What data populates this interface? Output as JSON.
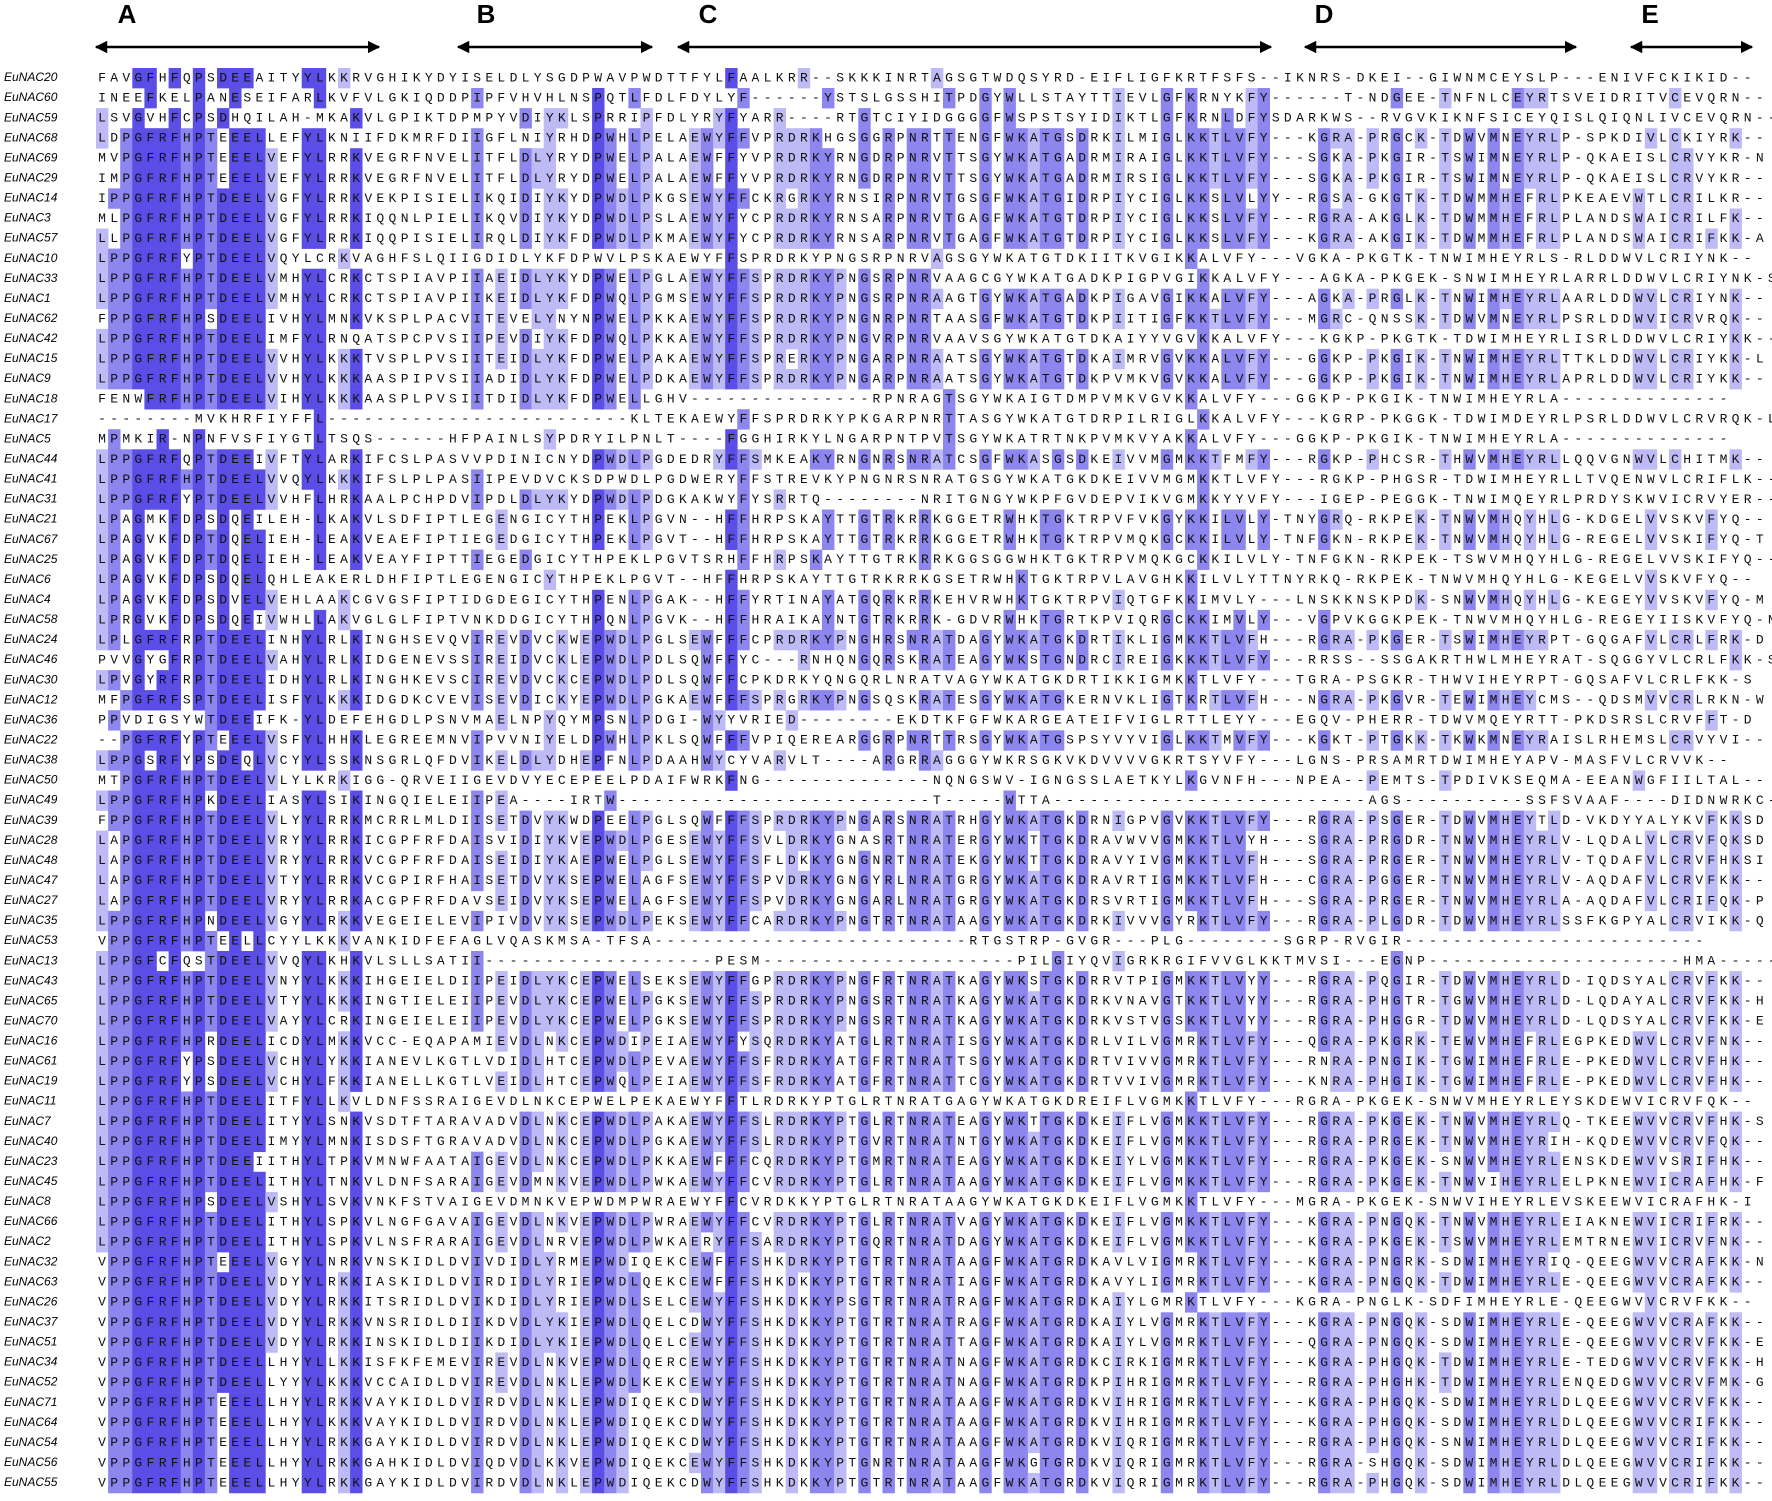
{
  "alignment": {
    "domains": [
      "A",
      "B",
      "C",
      "D",
      "E"
    ],
    "sequences": [
      {
        "name": "EuNAC20",
        "sequence": "FAVGFHFQPSDEEAITYYLKKRVGHIKYDYISELDLYSGDPWAVPWDTTFYLFAALKRR--SKKKINRTAGSGTWDQSYRD-EIFLIGFKRTFSFS--IKNRS-DKEI--GIWNMCEYSLP---ENIVFCKIKID--"
      },
      {
        "name": "EuNAC60",
        "sequence": "INEEFKELPANESEIFARLKVFVLGKIQDDPIPFVHVHLNSPQTLFDLFDYLYF------YSTSLGSSHITPDGYWLLSTAYTTIEVLGFKRNYKFY------T-NDGEE-TNFNLCEYRTSVEIDRITVCEVQRN--"
      },
      {
        "name": "EuNAC59",
        "sequence": "LSVGVHFCPSDHQILAH-MKAKVLGPIKTDPMPYVDIYKLSPRRIPFDLYRYFYARR----RTGTCIYIDGGGGFWSPSTSYIDIKTLGFKRNLDFYSDARKWS--RVGVKIKNFSICEYQISLQIQNLIVCEVQRN--"
      },
      {
        "name": "EuNAC68",
        "sequence": "LDPGFRFHPTEEELLEFYLKNIIFDKMRFDIIGFLNIYRHDPWHLPELAEWYFFVPRDRKHGSGGRPNRTTENGFWKATGSDRKILMIGLKKTLVFY---KGRA-PRGCK-TDWVMNEYRLP-SPKDIVLCKIYRK--"
      },
      {
        "name": "EuNAC69",
        "sequence": "MVPGFRFHPTEEELVEFYLRRKVEGRFNVELITFLDLYRYDPWELPALAEWFFYVPRDRKYRNGDRPNRVTTSGYWKATGADRMIRAIGLKKTLVFY---SGKA-PKGIR-TSWIMNEYRLP-QKAEISLCRVYKR-N"
      },
      {
        "name": "EuNAC29",
        "sequence": "IMPGFRFHPTEEELVEFYLRRKVEGRFNVELITFLDLYRYDPWELPALAEWFFYVPRDRKYRNGDRPNRVTTSGYWKATGADRMIRSIGLKKTLVFY---SGKA-PKGIR-TSWIMNEYRLP-QKAEISLCRVYKR--"
      },
      {
        "name": "EuNAC14",
        "sequence": "IPPGFRFHPTDEELVGFYLRRKVEKPISIELIKQIDIYKYDPWDLPKGSEWYFFCKRGRKYRNSIRPNRVTGSGFWKATGIDRPIYCIGLKKSLVLYY--RGSA-GKGTK-TDWMMHEFRLPKEAEVWTLCRILKR--"
      },
      {
        "name": "EuNAC3",
        "sequence": "MLPGFRFHPTDEELVGFYLRRKIQQNLPIELIKQVDIYKYDPWDLPSLAEWYFYCPRDRKYRNSARPNRVTGAGFWKATGTDRPIYCIGLKKSLVFY---RGRA-AKGLK-TDWMMHEFRLPLANDSWAICRILFK--"
      },
      {
        "name": "EuNAC57",
        "sequence": "LLPGFRFHPTDEELVGFYLRRKIQQPISIELIRQLDIYKFDPWDLPKMAEWYFYCPRDRKYRNSARPNRVTGAGFWKATGTDRPIYCIGLKKSLVFY---KGRA-AKGIK-TDWMMHEFRLPLANDSWAICRIFKK-A"
      },
      {
        "name": "EuNAC10",
        "sequence": "LPPGFRFYPTDEELVQYLCRKVAGHFSLQIIGDIDLYKFDPWVLPSKAEWYFFSPRDRKYPNGSRPNRVAGSGYWKATGTDKIITKVGIKKALVFY---VGKA-PKGTK-TNWIMHEYRLS-RLDDWVLCRIYNK--"
      },
      {
        "name": "EuNAC33",
        "sequence": "LPPGFRFHPTDEELVMHYLCRKCTSPIAVPIIAEIDLYKYDPWELPGLAEWYFFSPRDRKYPNGSRPNRVAAGCGYWKATGADKPIGPVGIKKALVFY---AGKA-PKGEK-SNWIMHEYRLARRLDDWVLCRIYNK-S"
      },
      {
        "name": "EuNAC1",
        "sequence": "LPPGFRFHPTDEELVMHYLCRKCTSPIAVPIIKEIDLYKFDPWQLPGMSEWYFFSPRDRKYPNGSRPNRAAGTGYWKATGADKPIGAVGIKKALVFY---AGKA-PRGLK-TNWIMHEYRLAARLDDWVLCRIYNK--"
      },
      {
        "name": "EuNAC62",
        "sequence": "FPPGFRFHPSDEELIVHYLMNKVKSPLPACVITEVELYNYNPWELPKKAEWYFFSPRDRKYPNGNRPNRTAASGFWKATGTDKPIITIGFKKTLVFY---MGRC-QNSSK-TDWVMNEYRLPSRLDDWVICRVRQK--"
      },
      {
        "name": "EuNAC42",
        "sequence": "LPPGFRFHPTDEELIMFYLRNQATSPCPVSIIPEVDIYKFDPWQLPKKAEWYFFSPRDRKYPNGVRPNRVAAVSGYWKATGTDKAIYYVGVKKALVFY---KGKP-PKGTK-TDWIMHEYRLISRLDDWVLCRIYKK--"
      },
      {
        "name": "EuNAC15",
        "sequence": "LPPGFRFHPTDEELVVHYLKKKTVSPLPVSIITEIDLYKFDPWELPAKAEWYFFSPRERKYPNGARPNRAATSGYWKATGTDKAIMRVGVKKALVFY---GGKP-PKGIK-TNWIMHEYRLTTKLDDWVLCRIYKK-L"
      },
      {
        "name": "EuNAC9",
        "sequence": "LPPGFRFHPTDEELVVHYLKKKAASPIPVSIIADIDLYKFDPWELPDKAEWYFFSPRDRKYPNGARPNRAATSGYWKATGTDKPVMKVGVKKALVFY---GGKP-PKGIK-TNWIMHEYRLAPRLDDWVLCRIYKK--"
      },
      {
        "name": "EuNAC18",
        "sequence": "FENWFRFHPTDEELVIHYLKKKAASPLPVSIITDIDLYKFDPWELLGHV---------------RPNRAGTSGYWKAIGTDMPVMKVGVKKALVFY---GGKP-PKGIK-TNWIMHEYRLA--------------"
      },
      {
        "name": "EuNAC17",
        "sequence": "--------MVKHRFIYFFL-------------------------KLTEKAEWYFFSPRDRKYPKGARPNRTTASGYWKATGTDRPILRIGLKKALVFY---KGRP-PKGGK-TDWIMDEYRLPSRLDDWVLCRVRQK-L"
      },
      {
        "name": "EuNAC5",
        "sequence": "MPMKIR-NPNFVSFIYGTLTSQS------HFPAINLSYPDRYILPNLT----FGGHIRKYLNGARPNTPVTSGYWKATRTNKPVMKVYAKKALVFY---GGKP-PKGIK-TNWIMHEYRLA--------------"
      },
      {
        "name": "EuNAC44",
        "sequence": "LPPGFRFQPTDEEIVFTYLARKIFCSLPASVVPDINICNYDPWDLPGDEDRYFFSMKEAKYRNGNRSNRATCSGFWKASGSDKEIVVMGMKKTFMFY---RGKP-PHCSR-THWVMHEYRLLQQVGNWVLCHITMK--"
      },
      {
        "name": "EuNAC41",
        "sequence": "LPPGFRFHPTDEELVVQYLKKKIFSLPLPASIIPEVDVCKSDPWDLPGDWERYFFSTREVKYPNGNRSNRATGSGYWKATGKDKEIVVMGMKKTLVFY---RGKP-PHGSR-TDWIMHEYRLLTVQENWVLCRIFLK--"
      },
      {
        "name": "EuNAC31",
        "sequence": "LPPGFRFYPTDEELVVHFLHRKAALPCHPDVIPDLDLYKYDPWDLPDGKAKWYFYSRRTQ--------NRITGNGYWKPFGVDEPVIKVGMKKYYVFY---IGEP-PEGGK-TNWIMQEYRLPRDYSKWVICRVYER--"
      },
      {
        "name": "EuNAC21",
        "sequence": "LPAGMKFDPSDQEILEH-LKAKVLSDFIPTLEGENGICYTHPEKLPGVN--HFFHRPSKAYTTGTRKRRKGGETRWHKTGKTRPVFVKGYKKILVLY-TNYGRQ-RKPEK-TNWVMHQYHLG-KDGELVVSKVFYQ--"
      },
      {
        "name": "EuNAC67",
        "sequence": "LPAGVKFDPTDQELIEH-LEAKVEAEFIPTIEGEDGICYTHPEKLPGVT--HFFHRPSKAYTTGTRKRRKGGETRWHKTGKTRPVMQKGCKKILVLY-TNFGKN-RKPEK-TNWVMHQYHLG-REGELVVSKIFYQ-T"
      },
      {
        "name": "EuNAC25",
        "sequence": "LPAGVKFDPTDQELIEH-LEAKVEAYFIPTTIEGEDGICYTHPEKLPGVTSRHFFHRPSKAYTTGTRKRRKGGSGGWHKTGKTRPVMQKGCKKILVLY-TNFGKN-RKPEK-TSWVMHQYHLG-REGELVVSKIFYQ--"
      },
      {
        "name": "EuNAC6",
        "sequence": "LPAGVKFDPSDQELQHLEAKERLDHFIPTLEGENGICYTHPEKLPGVT--HFFHRPSKAYTTGTRKRRKGSETRWHKTGKTRPVLAVGHKKILVLYTTNYRKQ-RKPEK-TNWVMHQYHLG-KEGELVVSKVFYQ--"
      },
      {
        "name": "EuNAC4",
        "sequence": "LPAGVKFDPSDVELVEHLAAKCGVGSFIPTIDGDEGICYTHPENLPGAK--HFFYRTINAYATGQRKRRKEHVRWHKTGKTRPVIQTGFKKIMVLY---LNSKKNSKPDK-SNWVMHQYHLG-KEGEYVVSKVFYQ-M"
      },
      {
        "name": "EuNAC58",
        "sequence": "LPRGVKFDPSDQEIVWHLLAKVGLGLFIPTVNKDDGICYTHPQNLPGVK--HFFHRAIKAYNTGTRKRRK-GDVRWHKTGRTKPVIQRGCKKIMVLY---VGPVKGGKPEK-TNWVMHQYHLG-REGEYIISKVFYQ-N"
      },
      {
        "name": "EuNAC24",
        "sequence": "LPLGFRFRPTDEELINHYLRLKINGHSEVQVIREVDVCKWEPWDLPGLSEWFFFCPRDRKYPNGHRSNRATDAGYWKATGKDRTIKLIGMKKTLVFH---RGRA-PKGER-TSWIMHEYRPT-GQGAFVLCRLFRK-D"
      },
      {
        "name": "EuNAC46",
        "sequence": "PVVGYGFRPTDEELVAHYLRLKIDGENEVSSIREIDVCKLEPWDLPDLSQWFFYC---RNHQNGQRSKRATEAGYWKSTGNDRCIREIGKKKTLVFY---RRSS--SSGAKRTHWLMHEYRAT-SQGGYVLCRLFKK-S"
      },
      {
        "name": "EuNAC30",
        "sequence": "LPVGYRFRPTDEELIDHYLRLKINGHKEVSCIREVDVCKCEPWDLPDLSQWFFCPKDRKYQNGQRLNRATVAGYWKATGKDRTIKKIGMKKTLVFY---TGRA-PSGKR-THWVIHEYRPT-GQSAFVLCRLFKK-S"
      },
      {
        "name": "EuNAC12",
        "sequence": "MFPGFRFSPTDEELISFYLKKKIDGDKCVEVISEVDICKYEPWDLPGKAEWFFFSPRGRKYPNGSQSKRATESGYWKATGKERNVKLIGTKRTLVFH---NGRA-PKGVR-TEWIMHEYCMS--QDSMVVCRLRKN-W"
      },
      {
        "name": "EuNAC36",
        "sequence": "PPVDIGSYWTDEEIFK-YLDEFEHGDLPSNVMAELNPYQYMPSNLPDGI-WYYVRIED--------EKDTKFGFWKARGEATEIFVIGLRTTLEYY---EGQV-PHERR-TDWVMQEYRTT-PKDSRSLCRVFFT-D"
      },
      {
        "name": "EuNAC22",
        "sequence": "--PGFRFYPTEEELVSFYLHHKLEGREEMNVIPVVNIYELDPWHLPKLSQWFFFVPIQEREARGGRPNRTTRSGYWKATGSPSYVYVIGLKKTMVFY---KGKT-PTGKK-TKWKMNEYRAISLRHEMSLCRVYVI--"
      },
      {
        "name": "EuNAC38",
        "sequence": "LPPGSRFYPSDEQLVCYYLSSKNSGRLQFDVIKELDLYDHEPFNLPDAAHWYCYVARVLT----ARGRRAGGGYWKRSGKVKDVVVVGKRTSYVFY---LGNS-PRSAMRTDWIMHEYAPV-MASFVLCRVVK--"
      },
      {
        "name": "EuNAC50",
        "sequence": "MTPGFRFHPTDEELVLYLKRKIGG-QRVEIIGEVDVYECEPEELPDAIFWRKFNG--------------NQNGSWV-IGNGSSLAETKYLKGVNFH---NPEA--PEMTS-TPDIVKSEQMA-EEANWGFIILTAL--"
      },
      {
        "name": "EuNAC49",
        "sequence": "LPPGFRFHPKDEELIASYLSIKINGQIELEIIPEA----IRTW--------------------------T-----WTTA--------------------------AGS----------SSFSVAAF----DIDNWRKC-----"
      },
      {
        "name": "EuNAC39",
        "sequence": "FPPGFRFHPTDEELVLYYLRRKMCRRLMLDIISETDVYKWDPEELPGLSQWFFFSPRDRKYPNGARSNRATRHGYWKATGKDRNIGPVGVKKTLVFY---RGRA-PSGER-TDWVMHEYTLD-VKDYYALYKVFKKSD"
      },
      {
        "name": "EuNAC28",
        "sequence": "LAPGFRFHPTDEELVRYYLRRKICGPFRFDAISVIDIYKVEPWDLPGESEWYFFSVLDRKYGNASRTNRATERGYWKTTGKDRAVWVVGMKKTLVYH---SGRA-PRGDR-TNWVMHEYRLV-LQDALVLCRVFQKSD"
      },
      {
        "name": "EuNAC48",
        "sequence": "LAPGFRFHPTDEELVRYYLRRKVCGPFRFDAISEIDIYKAEPWELPGLSEWYFFSFLDKKYGNGNRTNRATEKGYWKTTGKDRAVYIVGMKKTLVFH---SGRA-PRGER-TNWVMHEYRLV-TQDAFVLCRVFHKSI"
      },
      {
        "name": "EuNAC47",
        "sequence": "LAPGFRFHPTDEELVTYYLRRKVCGPIRFHAISETDVYKSEPWELAGFSEWYFFSPVDRKYGNGYRLNRATGRGYWKATGKDRAVRTIGMKKTLVFH---CGRA-PGGER-TNWVMHEYRLV-AQDAFVLCRVFKK--"
      },
      {
        "name": "EuNAC27",
        "sequence": "LAPGFRFHPTDEELVRYYLRRKACGPFRFDAVSEIDVYKSEPWELAGFSEWYFFSPVDRKYGNGARLNRATGRGYWKATGKDRSVRTIGMKKTLVFH---SGRA-PRGER-TNWVMHEYRLA-AQDAFVLCRIFQK-P"
      },
      {
        "name": "EuNAC35",
        "sequence": "LPPGFRFHPNDEELVGYYLRKKVEGEIELEVIPIVDVYKSEPWDLPEKSEWYFFCARDRKYPNGTRTNRATAAGYWKATGKDRKIVVVGYRKTLVFY---RGRA-PLGDR-TDWVMHEYRLSSFKGPYALCRVIKK-Q"
      },
      {
        "name": "EuNAC53",
        "sequence": "VPPGFRFHPTEELLCYYLKKKVANKIDFEFAGLVQASKMSA-TFSA--------------------------RTGSTRP-GVGR---PLG--------SGRP-RVGIR-------------------------"
      },
      {
        "name": "EuNAC13",
        "sequence": "LPPGFCFQSTDEELVVQYLKHKVLSLLSATII-------------------PESM---------------------PILGIYQVIGRKRGIFVVGLKKTMVSI---EGNP---------------------HMA----------"
      },
      {
        "name": "EuNAC43",
        "sequence": "LPPGFRFHPTDEELVNYYLKKKIHGEIELDIIPEIDLYKCEPWELSEKSEWYFFGPRDRKYPNGFRTNRATKAGYWKSTGKDRRVTPIGMKKTLVYY---RGRA-PQGIR-TDWVMHEYRLD-IQDSYALCRVFKK--"
      },
      {
        "name": "EuNAC65",
        "sequence": "LPPGFRFHPTDEELVTYYLKKKINGTIELEIIPEVDLYKCEPWELPGKSEWYFFSPRDRKYPNGSRTNRATKAGYWKATGKDRKVNAVGTKKTLVYY---RGRA-PHGTR-TGWVMHEYRLD-LQDAYALCRVFKK-H"
      },
      {
        "name": "EuNAC70",
        "sequence": "LPPGFRFHPTDEELVAYYLCRKINGEIELEIIPEVDLYKCEPWELPGKSEWYFFSPRDRKYPNGSRTNRATKAGYWKATGKDRKVSTVGSKKTLVYY---RGRA-PHGGR-TDWVMHEYRLD-LQDSYALCRVFKK-E"
      },
      {
        "name": "EuNAC16",
        "sequence": "LPPGFRFHPRDEELICDYLMKKVCC-EQAPAMIEVDLNKCEPWDIPEIAEWYFYSQRDRKYATGLRTNRATISGYWKATGKDRLVILVGMRKTLVFY---QGRA-PKGRK-TEWVMHEFRLEGPKEDWVLCRVFNK--"
      },
      {
        "name": "EuNAC61",
        "sequence": "LPPGFRFYPSDEELVCHYLYKKIANEVLKGTLVDIDLHTCEPWDLPEVAEWYFFSFRDRKYATGFRTNRATTSGYWKATGKDRTVIVVGMRKTLVFY---RNRA-PNGIK-TGWIMHEFRLE-PKEDWVLCRVFHK--"
      },
      {
        "name": "EuNAC19",
        "sequence": "LPPGFRFYPSDEELVCHYLFKKIANELLKGTLVEIDLHTCEPWQLPEIAEWYFFSFRDRKYATGFRTNRATTCGYWKATGKDRTVVIVGMRKTLVFY---KNRA-PHGIK-TGWIMHEFRLE-PKEDWVLCRVFHK--"
      },
      {
        "name": "EuNAC11",
        "sequence": "LPPGFRFHPTDEELITFYLLKVLDNFSSRAIGEVDLNKCEPWELPEKAEWYFFTLRDRKYPTGLRTNRATGAGYWKATGKDREIFLVGMKKTLVFY---RGRA-PKGEK-SNWVMHEYRLEYSKDEWVICRVFQK--"
      },
      {
        "name": "EuNAC7",
        "sequence": "LPPGFRFHPTDEELITYYLSNKVSDTFTARAVADVDLNKCEPWDLPAKAEWYFFSLRDRKYPTGLRTNRATEAGYWKTTGKDKEIFLVGMKKTLVFY---RGRA-PKGEK-TNWVMHEYRLQ-TKEEWVVCRVFHK-S"
      },
      {
        "name": "EuNAC40",
        "sequence": "LPPGFRFHPTDEELIMYYLMNKISDSFTGRAVADVDLNKCEPWDLPGKAEWYFFSLRDRKYPTGVRTNRATNTGYWKATGKDKEIFLVGMKKTLVFY---RGRA-PRGEK-TNWVMHEYRIH-KQDEWVVCRVFQK--"
      },
      {
        "name": "EuNAC23",
        "sequence": "LPPGFRFHPTDEEIITHYLTPKVMNWFAATAIGEVDLNKCEPWDLPKKAEWFFFCQRDRKYPTGMRTNRATEAGYWKATGKDKEIYLVGMKKTLVFY---RGRA-PKGEK-SNWVMHEYRLENSKDEWVVSRIFHK--"
      },
      {
        "name": "EuNAC45",
        "sequence": "LPPGFRFHPTDEELITHYLTNKVLDNFSARAIGEVDMNKVEPWDLPWKAEWYFFCVRDRKYPTGLRTNRATAAGYWKATGKDKEIFLVGMKKTLVFY---RGRA-PKGEK-TNWVIHEYRLELPKNEWVICRAFHK-F"
      },
      {
        "name": "EuNAC8",
        "sequence": "LPPGFRFHPSDEELVSHYLSVKVNKFSTVAIGEVDMNKVEPWDMPWRAEWYFFCVRDKKYPTGLRTNRATAAGYWKATGKDKEIFLVGMKKTLVFY---MGRA-PKGEK-SNWVIHEYRLEVSKEEWVICRAFHK-I"
      },
      {
        "name": "EuNAC66",
        "sequence": "LPPGFRFHPTDEELITHYLSPKVLNGFGAVAIGEVDLNKVEPWDLPWRAEWYFFCVRDRKYPTGLRTNRATVAGYWKATGKDKEIFLVGMKKTLVFY---KGRA-PNGQK-TNWVMHEYRLEIAKNEWVICRIFRK--"
      },
      {
        "name": "EuNAC2",
        "sequence": "LPPGFRFHPTDEELITHYLSPKVLNSFRARAIGEVDLNRVEPWDLPWKAERYFFSARDRKYPTGQRTNRATDAGYWKATGKDKEIFLVGMKKTLVFY---KGRA-PKGEK-TSWVMHEYRLEMTRNEWVICRVFNK--"
      },
      {
        "name": "EuNAC32",
        "sequence": "VPPGFRFHPTEEELVGYYLNRKVNSKIDLDVIVDIDLYRMEPWDIQEKCEWFFFSHKDRKYPTGTRTNRATAAGFWKATGRDKAVLVIGMRKTLVFY---KGRA-PNGRK-SDWIMHEYRIQ-QEEGWVVCRAFKK-N"
      },
      {
        "name": "EuNAC63",
        "sequence": "VPPGFRFHPTDEELVDYYLRKKIASKIDLDVIRDIDLYRIEPWDLQEKCEWFFFSHKDKKYPTGTRTNRATIAGFWKATGRDKAVYLIGMRKTLVFY---KGRA-PNGQK-TDWIMHEYRLE-QEEGWVVCRAFKK--"
      },
      {
        "name": "EuNAC26",
        "sequence": "VPPGFRFHPTDEELVDYYLRKKITSRIDLDVIKDIDLYRIEPWDLSELCEWYFFSHKDKKYPSGTRTNRATRAGFWKATGRDKAIYLGMRKTLVFY---KGRA-PNGLK-SDFIMHEYRLE-QEEGWVVCRVFKK--"
      },
      {
        "name": "EuNAC37",
        "sequence": "VPPGFRFHPTDEELVDYYLRKKVNSRIDLDIIKDVDLYKIEPWDLQELCDWYFFSHKDKKYPTGTRTNRATRAGFWKATGRDKAIYLVGMRKTLVFY---KGRA-PNGQK-SDWIMHEYRLE-QEEGWVVCRAFKK--"
      },
      {
        "name": "EuNAC51",
        "sequence": "VPPGFRFHPTDEELVDYYLRKKINSKIDLDIIKDIDLYKIEPWDLQELCEWYFFSHKDKKYPTGTRTNRATTAGFWKATGRDKAIYLVGMRKTLVFY---QGRA-PNGQK-SDWIMHEYRLE-QEEGWVVCRVFKK-E"
      },
      {
        "name": "EuNAC34",
        "sequence": "VPPGFRFHPTDEELLHYYLLKKISFKFEMEVIREVDLNKVEPWDLQERCEWYFFSHKDKKYPTGTRTNRATNAGFWKATGRDKCIRKIGMRKTLVFY---KGRA-PHGQK-TDWIMHEYRLE-TEDGWVVCRVFKK-H"
      },
      {
        "name": "EuNAC52",
        "sequence": "VPPGFRFHPTDEELLYYYLKKKVCCAIDLDVIREVDLNKLEPWDLKEKCEWYFFSHKDKKYPTGTRTNRATNAGFWKATGRDKPIHRIGMRKTLVFY---RGRA-PHGHK-TDWIMHEYRLENQEDGWVVCRVFMK-G"
      },
      {
        "name": "EuNAC71",
        "sequence": "VPPGFRFHPTEEELLHYYLRKKVAYKIDLDVIRDVDLNKLEPWDIQEKCDWYFFSHKDKKYPTGTRTNRATAAGFWKATGRDKVIHRIGMRKTLVFY---KGRA-PHGQK-SDWIMHEYRLDLQEEGWVVCRVFKK--"
      },
      {
        "name": "EuNAC64",
        "sequence": "VPPGFRFHPTEEELLHYYLKKKVAYKIDLDVIRDVDLNKLEPWDIQEKCDWYFFSHKDKKYPTGTRTNRATAAGFWKATGRDKVIHRIGMRKTLVFY---KGRA-PHGQK-SDWIMHEYRLDLQEEGWVVCRIFKK--"
      },
      {
        "name": "EuNAC54",
        "sequence": "VPPGFRFHPTEEELLHYYLRKKGAYKIDLDVIRDVDLNKLEPWDIQEKCDWYFFSHKDKKYPTGTRTNRATAAGFWKATGRDKVIQRIGMRKTLVFY---RGRA-PHGQK-SNWIMHEYRLDLQEEGWVVCRIFKK--"
      },
      {
        "name": "EuNAC56",
        "sequence": "VPPGFRFHPTEEELLHYYLRKKGAHKIDLDVIQDVDLKKVEPWDIQEKCEWYFFSHKDKKYPTGNRTNRATAAGFWKGTGRDKVIQRIGMRKTLVFY---RGRA-SHGQK-SDWIMHEYRLDLQEEGWVVCRIFKK--"
      },
      {
        "name": "EuNAC55",
        "sequence": "VPPGFRFHPTEEELLHYYLRKKGAYKIDLDVIRDVDLNKLEPWDIQEKCDWYFFSHKDKKYPTGTRTNRATAAGFWKATGRDKVIQRIGMRKTLVFY---RGRA-PHGQK-SDWIMHEYRLDLQEEGWVVCRIFKK--"
      }
    ]
  }
}
